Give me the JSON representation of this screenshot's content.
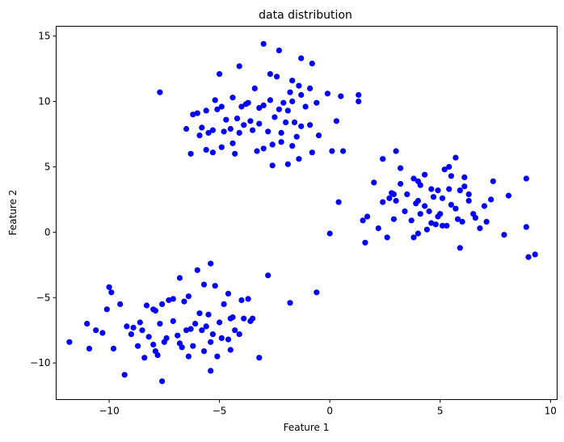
{
  "chart_data": {
    "type": "scatter",
    "title": "data distribution",
    "xlabel": "Feature 1",
    "ylabel": "Feature 2",
    "xlim": [
      -12.4,
      10.3
    ],
    "ylim": [
      -12.8,
      15.75
    ],
    "xticks": [
      -10,
      -5,
      0,
      5,
      10
    ],
    "xtick_labels": [
      "−10",
      "−5",
      "0",
      "5",
      "10"
    ],
    "yticks": [
      -10,
      -5,
      0,
      5,
      10,
      15
    ],
    "ytick_labels": [
      "−10",
      "−5",
      "0",
      "5",
      "10",
      "15"
    ],
    "grid": false,
    "legend": null,
    "marker_color": "#0000ff",
    "marker_size": 5,
    "series": [
      {
        "name": "points",
        "x": [
          -3.0,
          -2.3,
          -1.3,
          -0.8,
          -4.1,
          -5.0,
          -2.7,
          -2.4,
          -1.7,
          -1.4,
          -0.9,
          -6.2,
          -3.4,
          -1.8,
          -1.3,
          -0.1,
          -5.2,
          -4.4,
          -3.7,
          -2.7,
          -1.7,
          0.5,
          -4.9,
          -3.8,
          -3.0,
          -2.1,
          -1.1,
          -0.6,
          -6.0,
          -5.6,
          -5.1,
          -4.0,
          -3.2,
          -2.3,
          -1.9,
          0.3,
          -4.7,
          -4.2,
          -3.6,
          -2.5,
          -1.6,
          -0.9,
          -5.8,
          -5.3,
          -4.5,
          -3.9,
          -3.2,
          -2.0,
          -1.3,
          -6.5,
          -5.9,
          -5.5,
          -4.8,
          -4.1,
          -3.5,
          -2.8,
          -2.2,
          -1.5,
          -0.5,
          -4.9,
          -4.4,
          -3.3,
          -2.6,
          -2.2,
          -1.7,
          -7.7,
          -5.6,
          -6.3,
          -5.3,
          -4.3,
          -3.0,
          -2.6,
          -1.9,
          -1.4,
          -0.8,
          0.1,
          1.3,
          1.3,
          0.6,
          3.0,
          -0.0,
          3.2,
          2.4,
          2.8,
          5.7,
          5.4,
          6.1,
          5.5,
          5.2,
          4.3,
          3.8,
          3.2,
          4.0,
          4.6,
          6.1,
          8.9,
          1.7,
          7.4,
          2.9,
          4.1,
          4.9,
          5.4,
          5.9,
          2.7,
          3.5,
          4.7,
          4.0,
          5.1,
          6.3,
          7.3,
          8.1,
          2.4,
          3.0,
          3.9,
          4.3,
          5.5,
          6.3,
          7.0,
          4.5,
          5.0,
          5.7,
          6.5,
          2.9,
          3.4,
          4.1,
          4.9,
          5.8,
          6.6,
          1.5,
          2.2,
          3.7,
          4.6,
          5.3,
          6.0,
          7.1,
          7.9,
          8.9,
          2.0,
          4.4,
          5.1,
          6.8,
          9.0,
          9.3,
          5.9,
          0.4,
          1.6,
          3.8,
          2.6,
          4.0,
          4.8,
          -11.8,
          -10.9,
          -10.0,
          -9.9,
          -9.5,
          -10.1,
          -10.6,
          -11.0,
          -9.2,
          -8.3,
          -8.0,
          -7.6,
          -8.9,
          -8.6,
          -7.1,
          -6.4,
          -5.7,
          -4.6,
          -4.0,
          -3.7,
          -2.8,
          -5.4,
          -6.8,
          -6.0,
          -5.2,
          -7.9,
          -7.3,
          -6.6,
          -5.9,
          -5.5,
          -4.8,
          -4.4,
          -3.9,
          -8.5,
          -7.7,
          -7.1,
          -6.5,
          -6.1,
          -5.6,
          -5.0,
          -4.5,
          -3.5,
          -9.0,
          -8.2,
          -7.4,
          -6.9,
          -6.3,
          -5.8,
          -5.3,
          -4.6,
          -4.1,
          -3.6,
          -8.7,
          -8.0,
          -7.5,
          -6.8,
          -6.2,
          -5.4,
          -4.9,
          -4.3,
          -9.8,
          -8.4,
          -7.8,
          -6.7,
          -5.1,
          -4.5,
          -7.6,
          -5.4,
          -9.3,
          -10.3,
          -6.4,
          -3.2,
          -0.6,
          -1.8,
          -7.9,
          -5.7
        ],
        "y": [
          14.4,
          13.9,
          13.3,
          12.9,
          12.7,
          12.1,
          12.1,
          11.9,
          11.6,
          11.2,
          11.0,
          9.0,
          11.0,
          10.7,
          10.5,
          10.6,
          10.1,
          10.3,
          9.9,
          10.1,
          10.0,
          10.4,
          9.6,
          9.8,
          9.7,
          9.9,
          9.6,
          9.9,
          9.1,
          9.3,
          9.4,
          9.6,
          9.5,
          9.4,
          9.3,
          8.5,
          8.6,
          8.7,
          8.5,
          8.8,
          8.4,
          8.2,
          8.0,
          7.8,
          7.9,
          8.2,
          8.3,
          8.4,
          8.1,
          7.9,
          7.4,
          7.6,
          7.7,
          7.6,
          7.8,
          7.7,
          7.6,
          7.3,
          7.4,
          6.5,
          6.8,
          6.2,
          6.7,
          6.9,
          6.6,
          10.7,
          6.3,
          6.0,
          6.1,
          6.0,
          6.4,
          5.1,
          5.2,
          5.6,
          6.1,
          6.2,
          10.0,
          10.5,
          6.2,
          6.2,
          -0.1,
          4.9,
          5.6,
          3.0,
          5.7,
          5.0,
          4.2,
          4.3,
          4.8,
          4.4,
          4.1,
          3.7,
          3.9,
          3.3,
          3.5,
          4.1,
          1.2,
          3.9,
          2.9,
          3.6,
          3.2,
          3.3,
          3.2,
          2.6,
          2.9,
          2.7,
          2.4,
          2.6,
          2.9,
          2.5,
          2.8,
          2.3,
          2.4,
          2.2,
          2.0,
          2.1,
          2.4,
          2.0,
          1.6,
          1.4,
          1.8,
          1.4,
          1.0,
          1.6,
          1.4,
          1.2,
          1.0,
          1.1,
          0.9,
          0.3,
          0.9,
          0.7,
          0.5,
          0.8,
          0.8,
          -0.2,
          0.4,
          3.8,
          0.2,
          0.5,
          0.3,
          -1.9,
          -1.7,
          -1.2,
          2.3,
          -0.8,
          -0.4,
          -0.4,
          -0.1,
          0.6,
          -8.4,
          -8.9,
          -4.2,
          -4.6,
          -5.5,
          -5.9,
          -7.5,
          -7.0,
          -7.2,
          -5.6,
          -5.9,
          -5.5,
          -7.3,
          -6.9,
          -5.1,
          -4.9,
          -4.0,
          -4.7,
          -5.2,
          -5.1,
          -3.3,
          -2.4,
          -3.5,
          -2.9,
          -4.1,
          -6.0,
          -5.2,
          -5.3,
          -6.2,
          -6.3,
          -5.5,
          -6.5,
          -6.6,
          -7.5,
          -7.0,
          -6.8,
          -7.5,
          -7.0,
          -7.2,
          -6.9,
          -6.6,
          -6.6,
          -7.8,
          -8.0,
          -8.1,
          -7.9,
          -7.4,
          -7.5,
          -7.8,
          -8.2,
          -7.8,
          -6.8,
          -8.7,
          -8.6,
          -8.4,
          -8.5,
          -8.7,
          -8.4,
          -8.1,
          -7.5,
          -8.9,
          -9.6,
          -9.4,
          -8.8,
          -9.5,
          -9.0,
          -11.4,
          -10.6,
          -10.9,
          -7.7,
          -9.5,
          -9.6,
          -4.6,
          -5.4,
          -9.1,
          -9.1
        ]
      }
    ]
  }
}
